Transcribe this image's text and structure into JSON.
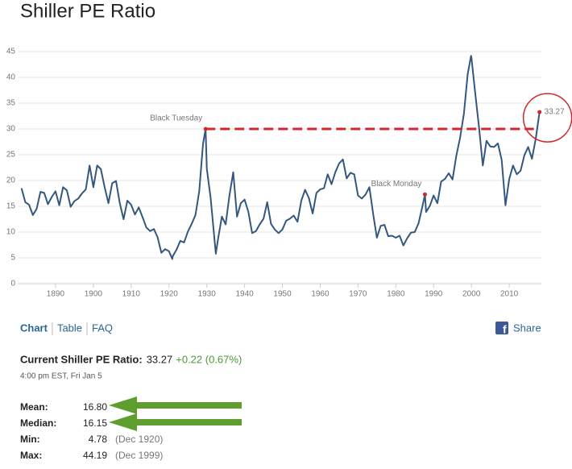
{
  "chart_data": {
    "type": "line",
    "title": "Shiller PE Ratio",
    "x": [
      1881,
      1882,
      1883,
      1884,
      1885,
      1886,
      1887,
      1888,
      1889,
      1890,
      1891,
      1892,
      1893,
      1894,
      1895,
      1896,
      1897,
      1898,
      1899,
      1900,
      1901,
      1902,
      1903,
      1904,
      1905,
      1906,
      1907,
      1908,
      1909,
      1910,
      1911,
      1912,
      1913,
      1914,
      1915,
      1916,
      1917,
      1918,
      1919,
      1920,
      1920.9,
      1921,
      1922,
      1923,
      1924,
      1925,
      1926,
      1927,
      1928,
      1929,
      1929.7,
      1930,
      1931,
      1932.4,
      1933,
      1934,
      1935,
      1936,
      1937,
      1938,
      1939,
      1940,
      1941,
      1942,
      1943,
      1944,
      1945,
      1946,
      1947,
      1948,
      1949,
      1950,
      1951,
      1952,
      1953,
      1954,
      1955,
      1956,
      1957,
      1958,
      1959,
      1960,
      1961,
      1962,
      1963,
      1964,
      1965,
      1966,
      1967,
      1968,
      1969,
      1970,
      1971,
      1972,
      1973,
      1974,
      1975,
      1976,
      1977,
      1978,
      1979,
      1980,
      1981,
      1982,
      1983,
      1984,
      1985,
      1986,
      1987,
      1987.7,
      1988,
      1989,
      1990,
      1991,
      1992,
      1993,
      1994,
      1995,
      1996,
      1997,
      1998,
      1999,
      1999.9,
      2000,
      2001,
      2002,
      2003,
      2004,
      2005,
      2006,
      2007,
      2008,
      2009,
      2010,
      2011,
      2012,
      2013,
      2014,
      2015,
      2016,
      2017,
      2018
    ],
    "values": [
      18.5,
      15.8,
      15.3,
      13.3,
      14.5,
      17.8,
      17.6,
      15.4,
      16.8,
      17.9,
      15.2,
      18.7,
      18.1,
      14.9,
      16.0,
      16.5,
      17.5,
      18.3,
      22.9,
      18.7,
      22.9,
      22.2,
      18.7,
      15.6,
      19.5,
      19.9,
      15.6,
      12.5,
      16.1,
      15.3,
      13.4,
      14.8,
      12.9,
      10.9,
      10.2,
      10.6,
      9.0,
      6.0,
      6.7,
      6.3,
      4.78,
      5.3,
      6.6,
      8.3,
      8.0,
      10.1,
      11.6,
      13.3,
      17.9,
      27.1,
      30,
      22.3,
      16.7,
      5.8,
      8.7,
      13.0,
      11.5,
      17.1,
      21.6,
      13.0,
      15.6,
      16.3,
      13.9,
      9.8,
      10.2,
      11.5,
      12.6,
      15.8,
      11.6,
      10.5,
      9.8,
      10.5,
      12.2,
      12.6,
      13.2,
      12.0,
      16.1,
      18.2,
      16.6,
      13.6,
      17.6,
      18.3,
      18.5,
      21.2,
      19.3,
      21.6,
      23.3,
      24.1,
      20.4,
      21.5,
      21.2,
      17.1,
      16.5,
      17.3,
      18.7,
      13.5,
      8.9,
      11.2,
      11.4,
      9.2,
      9.3,
      8.9,
      9.3,
      7.4,
      8.8,
      9.9,
      10.0,
      11.7,
      14.9,
      17.3,
      13.9,
      15.1,
      17.1,
      15.6,
      19.8,
      20.3,
      21.4,
      20.2,
      24.8,
      28.3,
      32.9,
      40.6,
      44.19,
      43.8,
      36.9,
      30.3,
      22.9,
      27.7,
      26.6,
      26.5,
      27.2,
      24.0,
      15.2,
      20.3,
      22.9,
      21.2,
      21.9,
      24.9,
      26.5,
      24.2,
      28.1,
      33.27
    ],
    "color": "#34577f",
    "xlim": [
      1880,
      2018.5
    ],
    "xticks": [
      1890,
      1900,
      1910,
      1920,
      1930,
      1940,
      1950,
      1960,
      1970,
      1980,
      1990,
      2000,
      2010
    ],
    "ylim": [
      0,
      45
    ],
    "yticks": [
      0,
      5,
      10,
      15,
      20,
      25,
      30,
      35,
      40,
      45
    ],
    "grid": true,
    "annotations": [
      {
        "text": "Black Tuesday",
        "x": 1929.7,
        "y": 30
      },
      {
        "text": "Black Monday",
        "x": 1987.7,
        "y": 17.3
      },
      {
        "text": "33.27",
        "x": 2018,
        "y": 33.27
      }
    ],
    "reference_line": {
      "y": 30,
      "x": [
        1929.7,
        2016.5
      ],
      "color": "#d0282e"
    }
  },
  "page": {
    "tabs": [
      "Chart",
      "Table",
      "FAQ"
    ],
    "share": "Share",
    "current": {
      "label": "Current Shiller PE Ratio:",
      "value": "33.27",
      "change": "+0.22 (0.67%)",
      "time": "4:00 pm EST, Fri Jan 5"
    },
    "stats": [
      {
        "label": "Mean:",
        "value": "16.80"
      },
      {
        "label": "Median:",
        "value": "16.15"
      },
      {
        "label": "Min:",
        "value": "4.78",
        "date": "(Dec 1920)"
      },
      {
        "label": "Max:",
        "value": "44.19",
        "date": "(Dec 1999)"
      }
    ]
  }
}
